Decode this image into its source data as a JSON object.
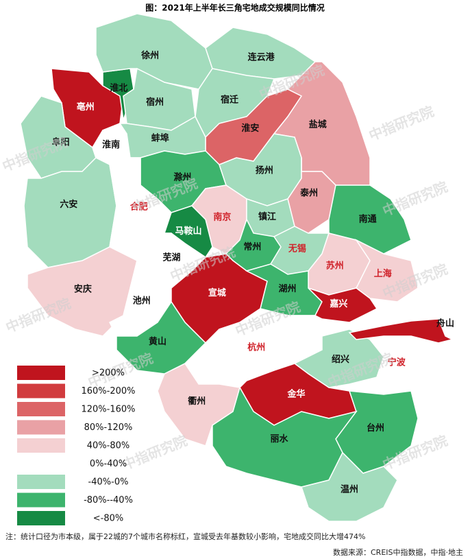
{
  "title": "图：2021年上半年长三角宅地成交规模同比情况",
  "legend": [
    {
      "label": ">200%",
      "color": "#c0141e"
    },
    {
      "label": "160%-200%",
      "color": "#d13b3e"
    },
    {
      "label": "120%-160%",
      "color": "#dc6466"
    },
    {
      "label": "80%-120%",
      "color": "#e9a1a5"
    },
    {
      "label": "40%-80%",
      "color": "#f4d0d2"
    },
    {
      "label": "0%-40%",
      "color": "#ffffff"
    },
    {
      "label": "-40%-0%",
      "color": "#a3dcbd"
    },
    {
      "label": "-80%--40%",
      "color": "#3db46d"
    },
    {
      "label": "<-80%",
      "color": "#168a44"
    }
  ],
  "cities": [
    {
      "name": "亳州",
      "class": 0,
      "label_color": "#ffffff"
    },
    {
      "name": "淮北",
      "class": 8,
      "label_color": "#111111"
    },
    {
      "name": "徐州",
      "class": 6,
      "label_color": "#111111"
    },
    {
      "name": "连云港",
      "class": 6,
      "label_color": "#111111"
    },
    {
      "name": "宿州",
      "class": 6,
      "label_color": "#111111"
    },
    {
      "name": "宿迁",
      "class": 6,
      "label_color": "#111111"
    },
    {
      "name": "淮安",
      "class": 2,
      "label_color": "#111111"
    },
    {
      "name": "盐城",
      "class": 3,
      "label_color": "#111111"
    },
    {
      "name": "阜阳",
      "class": 6,
      "label_color": "#111111"
    },
    {
      "name": "淮南",
      "class": 5,
      "label_color": "#111111"
    },
    {
      "name": "蚌埠",
      "class": 6,
      "label_color": "#111111"
    },
    {
      "name": "滁州",
      "class": 7,
      "label_color": "#111111"
    },
    {
      "name": "扬州",
      "class": 6,
      "label_color": "#111111"
    },
    {
      "name": "泰州",
      "class": 3,
      "label_color": "#111111"
    },
    {
      "name": "南通",
      "class": 7,
      "label_color": "#111111"
    },
    {
      "name": "六安",
      "class": 6,
      "label_color": "#111111"
    },
    {
      "name": "合肥",
      "class": 5,
      "label_color": "#d0232b"
    },
    {
      "name": "南京",
      "class": 4,
      "label_color": "#d0232b"
    },
    {
      "name": "镇江",
      "class": 6,
      "label_color": "#111111"
    },
    {
      "name": "马鞍山",
      "class": 8,
      "label_color": "#ffffff"
    },
    {
      "name": "常州",
      "class": 7,
      "label_color": "#111111"
    },
    {
      "name": "无锡",
      "class": 6,
      "label_color": "#d0232b"
    },
    {
      "name": "苏州",
      "class": 4,
      "label_color": "#d0232b"
    },
    {
      "name": "上海",
      "class": 4,
      "label_color": "#d0232b"
    },
    {
      "name": "芜湖",
      "class": 5,
      "label_color": "#111111"
    },
    {
      "name": "安庆",
      "class": 4,
      "label_color": "#111111"
    },
    {
      "name": "池州",
      "class": 5,
      "label_color": "#111111"
    },
    {
      "name": "宣城",
      "class": 0,
      "label_color": "#ffffff"
    },
    {
      "name": "湖州",
      "class": 7,
      "label_color": "#111111"
    },
    {
      "name": "嘉兴",
      "class": 0,
      "label_color": "#ffffff"
    },
    {
      "name": "黄山",
      "class": 7,
      "label_color": "#111111"
    },
    {
      "name": "杭州",
      "class": 5,
      "label_color": "#d0232b"
    },
    {
      "name": "绍兴",
      "class": 6,
      "label_color": "#111111"
    },
    {
      "name": "宁波",
      "class": 5,
      "label_color": "#d0232b"
    },
    {
      "name": "衢州",
      "class": 4,
      "label_color": "#111111"
    },
    {
      "name": "金华",
      "class": 0,
      "label_color": "#ffffff"
    },
    {
      "name": "台州",
      "class": 7,
      "label_color": "#111111"
    },
    {
      "name": "丽水",
      "class": 7,
      "label_color": "#111111"
    },
    {
      "name": "温州",
      "class": 6,
      "label_color": "#111111"
    },
    {
      "name": "舟山",
      "class": 0,
      "label_color": "#111111"
    }
  ],
  "watermark": "中指研究院",
  "note": "注：统计口径为市本级，属于22城的7个城市名称标红，宣城受去年基数较小影响，宅地成交同比大增474%",
  "source": "数据来源：CREIS中指数据，中指·地主"
}
